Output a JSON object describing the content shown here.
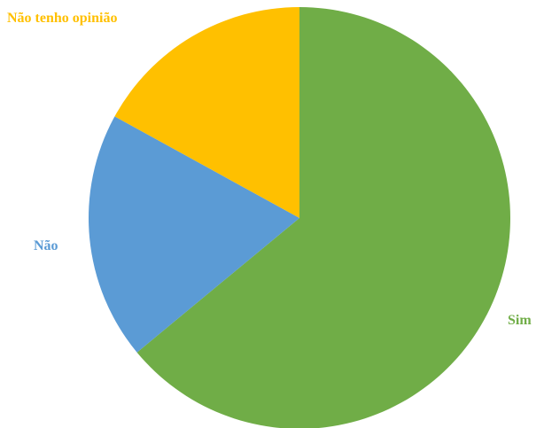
{
  "chart_data": {
    "type": "pie",
    "title": "",
    "start_angle_deg": 0,
    "direction": "clockwise",
    "legend": "none",
    "slices": [
      {
        "label": "Sim",
        "value": 64,
        "color": "#70AD47"
      },
      {
        "label": "Não",
        "value": 19,
        "color": "#5B9BD5"
      },
      {
        "label": "Não tenho opinião",
        "value": 17,
        "color": "#FFC000"
      }
    ]
  }
}
